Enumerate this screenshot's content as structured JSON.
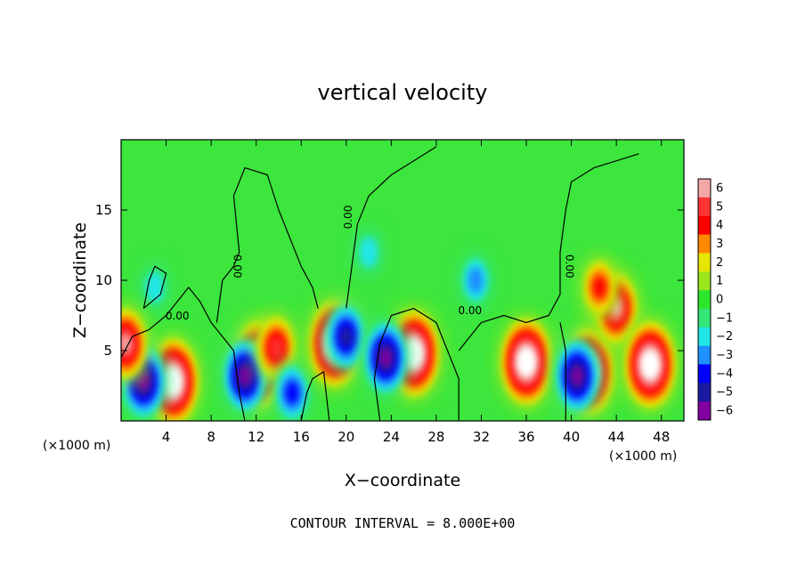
{
  "chart_data": {
    "type": "heatmap",
    "title": "vertical velocity",
    "xlabel": "X−coordinate",
    "ylabel": "Z−coordinate",
    "x_unit_left": "(×1000 m)",
    "x_unit_right": "(×1000 m)",
    "xlim": [
      0,
      50
    ],
    "ylim": [
      0,
      20
    ],
    "x_ticks": [
      4,
      8,
      12,
      16,
      20,
      24,
      28,
      32,
      36,
      40,
      44,
      48
    ],
    "y_ticks": [
      5,
      10,
      15
    ],
    "x_tick_labels": [
      "4",
      "8",
      "12",
      "16",
      "20",
      "24",
      "28",
      "32",
      "36",
      "40",
      "44",
      "48"
    ],
    "y_tick_labels": [
      "5",
      "10",
      "15"
    ],
    "contour_interval_text": "CONTOUR INTERVAL = 8.000E+00",
    "contour_labels": [
      "0.00",
      "0.00",
      "0.00",
      "0.00",
      "0.00"
    ],
    "colorbar": {
      "levels": [
        6,
        5,
        4,
        3,
        2,
        1,
        0,
        -1,
        -2,
        -3,
        -4,
        -5,
        -6
      ],
      "labels": [
        "6",
        "5",
        "4",
        "3",
        "2",
        "1",
        "0",
        "−1",
        "−2",
        "−3",
        "−4",
        "−5",
        "−6"
      ],
      "colors": [
        "#f4a7a7",
        "#ff3333",
        "#ff0000",
        "#ff8800",
        "#e6e600",
        "#9be61f",
        "#2ee62e",
        "#33e677",
        "#22e6e6",
        "#1e90ff",
        "#0000ff",
        "#1a1aa0",
        "#8000a0"
      ]
    },
    "features": [
      {
        "x": 4.6,
        "z": 2.8,
        "value": 8
      },
      {
        "x": 2.0,
        "z": 2.8,
        "value": -6
      },
      {
        "x": 12.2,
        "z": 4.0,
        "value": 8
      },
      {
        "x": 11.0,
        "z": 3.2,
        "value": -6
      },
      {
        "x": 13.8,
        "z": 5.2,
        "value": 5
      },
      {
        "x": 15.2,
        "z": 2.0,
        "value": -4
      },
      {
        "x": 19.0,
        "z": 5.5,
        "value": 8
      },
      {
        "x": 20.0,
        "z": 6.0,
        "value": -5
      },
      {
        "x": 26.0,
        "z": 4.8,
        "value": 8
      },
      {
        "x": 23.5,
        "z": 4.5,
        "value": -6
      },
      {
        "x": 36.0,
        "z": 4.2,
        "value": 8
      },
      {
        "x": 41.5,
        "z": 3.5,
        "value": 8
      },
      {
        "x": 40.5,
        "z": 3.2,
        "value": -6
      },
      {
        "x": 44.0,
        "z": 8.0,
        "value": 6
      },
      {
        "x": 47.0,
        "z": 4.0,
        "value": 8
      },
      {
        "x": 42.5,
        "z": 9.5,
        "value": 4
      },
      {
        "x": 31.5,
        "z": 10.0,
        "value": -3
      },
      {
        "x": 22.0,
        "z": 12.0,
        "value": -2
      },
      {
        "x": 3.0,
        "z": 9.5,
        "value": -2
      },
      {
        "x": 0.4,
        "z": 5.5,
        "value": 6
      }
    ]
  }
}
